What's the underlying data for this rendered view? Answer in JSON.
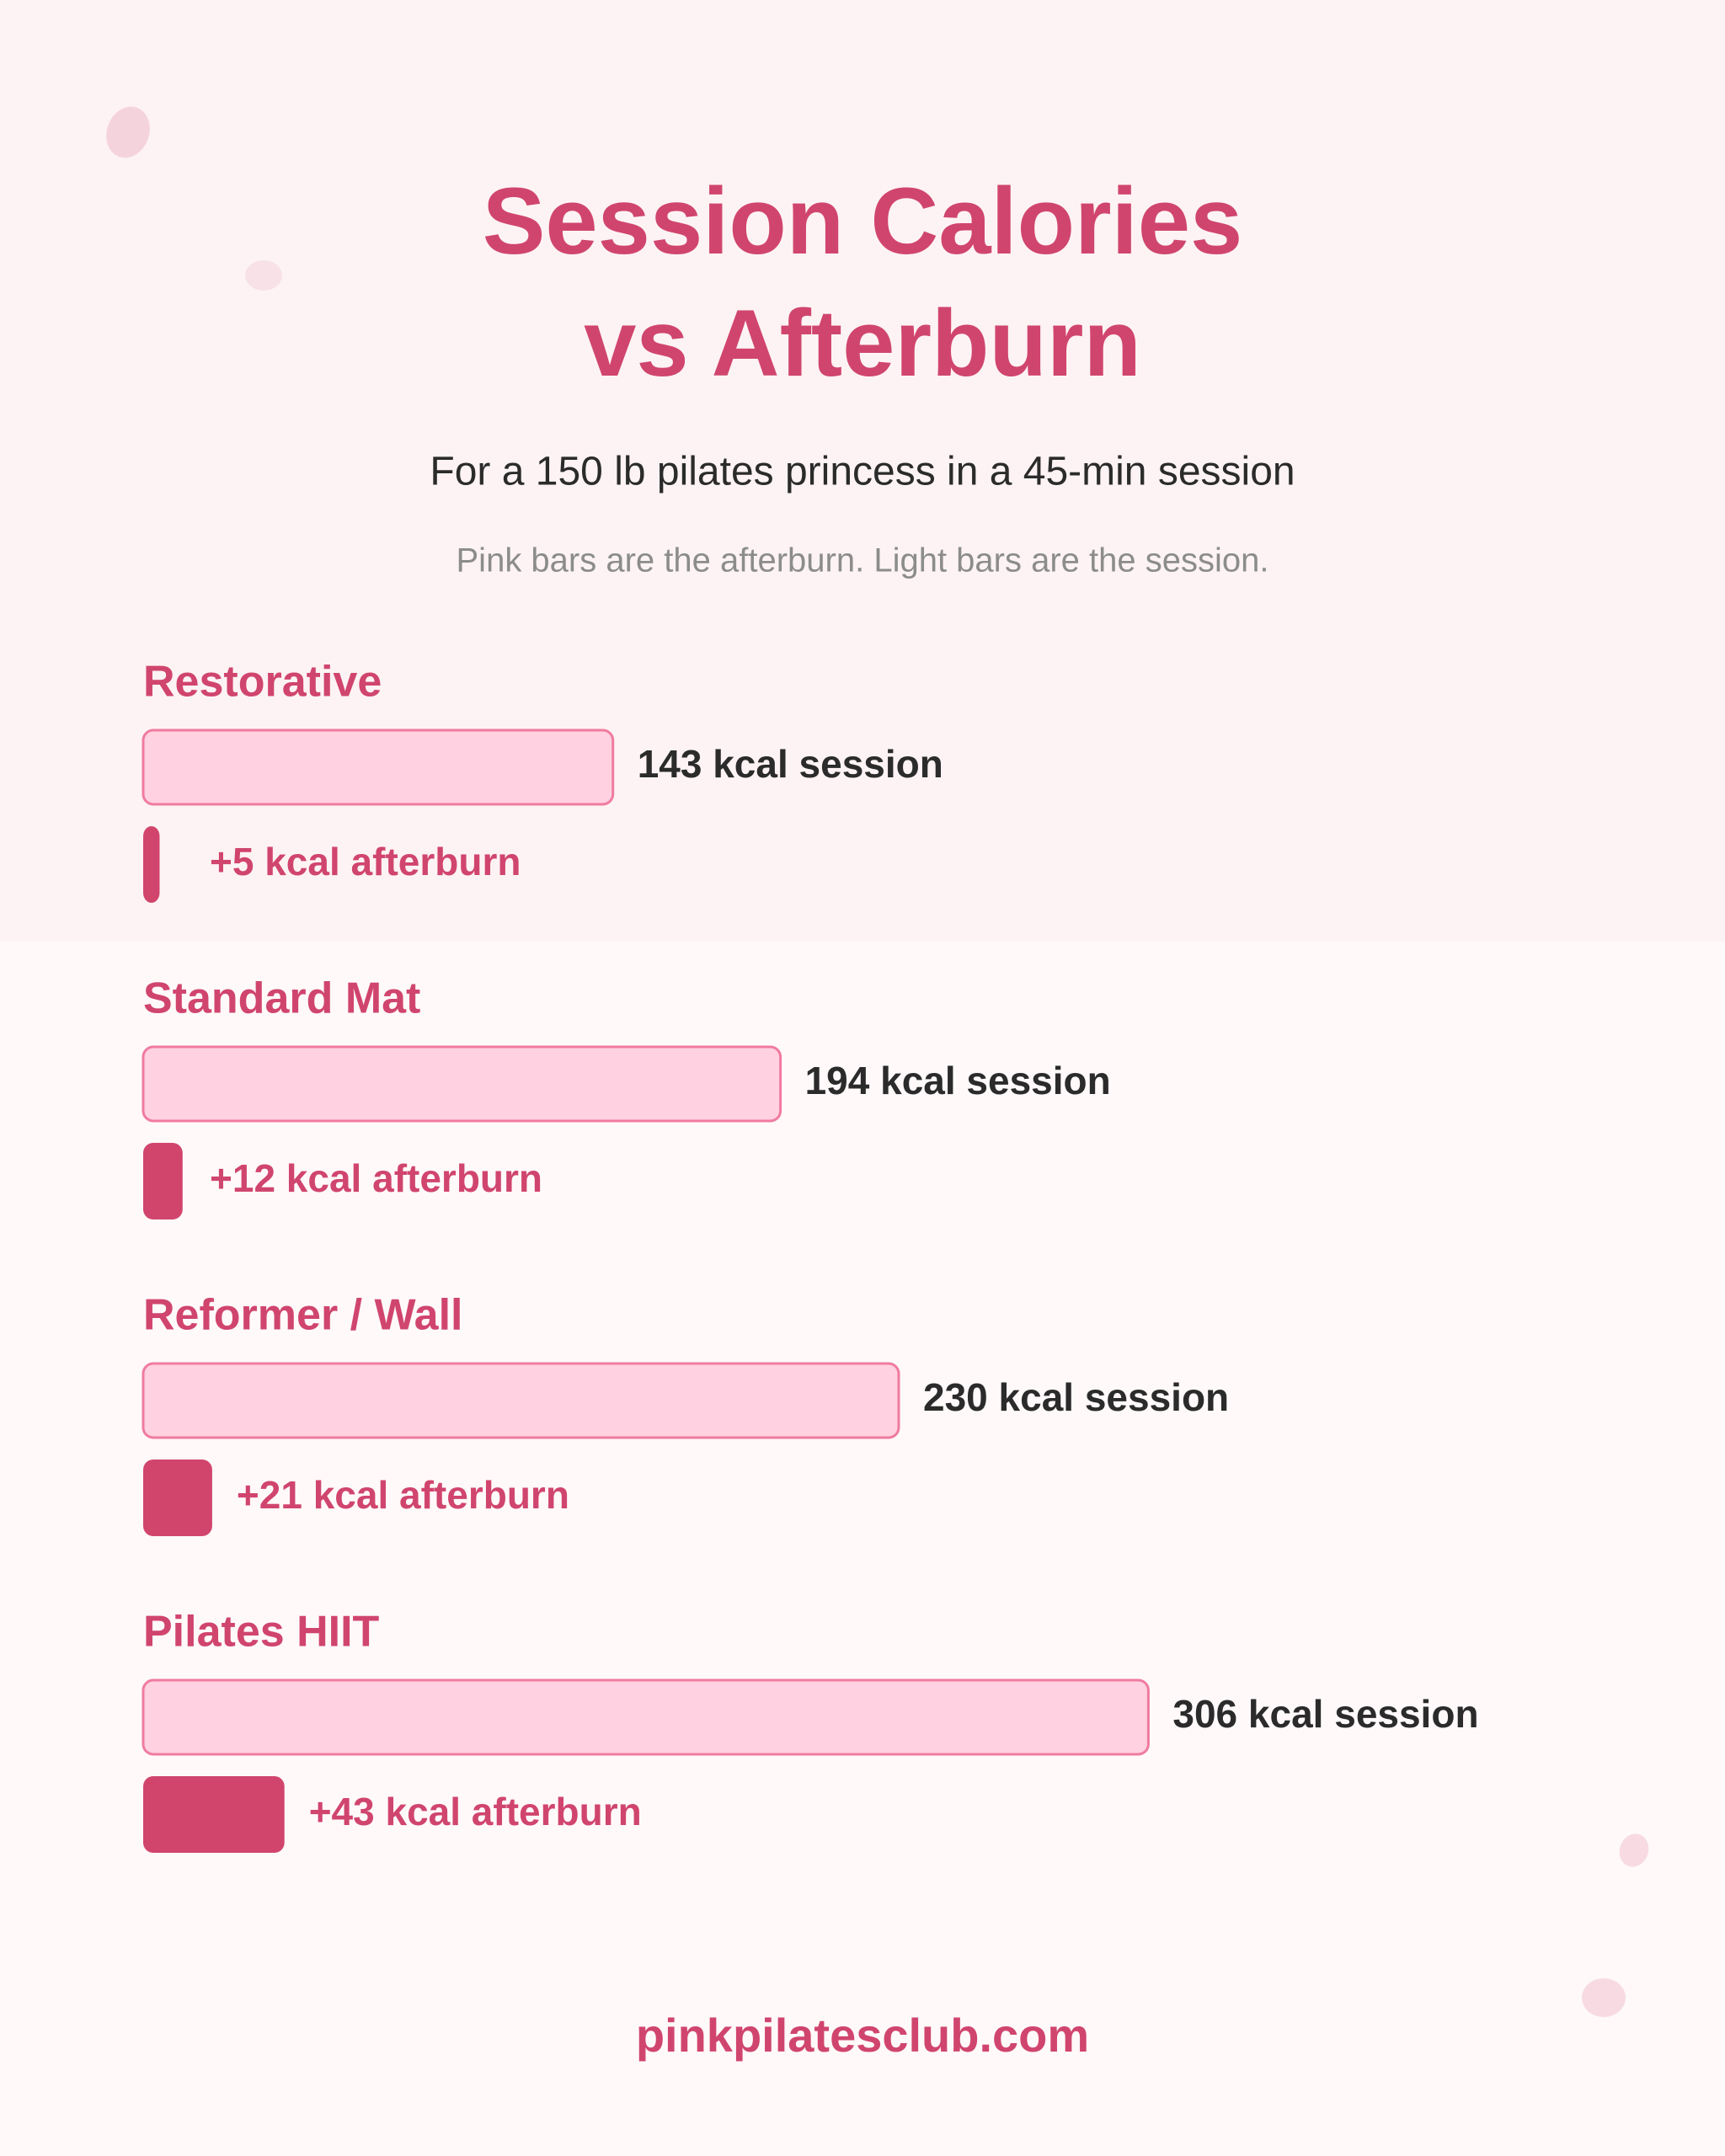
{
  "chart_data": {
    "type": "bar",
    "title": "Session Calories vs Afterburn",
    "subtitle": "For a 150 lb pilates princess in a 45-min session",
    "note": "Pink bars are the afterburn. Light bars are the session.",
    "categories": [
      "Restorative",
      "Standard Mat",
      "Reformer / Wall",
      "Pilates HIIT"
    ],
    "series": [
      {
        "name": "session",
        "color": "#ffd1e1",
        "values": [
          143,
          194,
          230,
          306
        ],
        "value_labels": [
          "143 kcal session",
          "194 kcal session",
          "230 kcal session",
          "306 kcal session"
        ]
      },
      {
        "name": "afterburn",
        "color": "#d1456c",
        "values": [
          5,
          12,
          21,
          43
        ],
        "value_labels": [
          "+5 kcal afterburn",
          "+12 kcal afterburn",
          "+21 kcal afterburn",
          "+43 kcal afterburn"
        ]
      }
    ],
    "footer": "pinkpilatesclub.com"
  }
}
